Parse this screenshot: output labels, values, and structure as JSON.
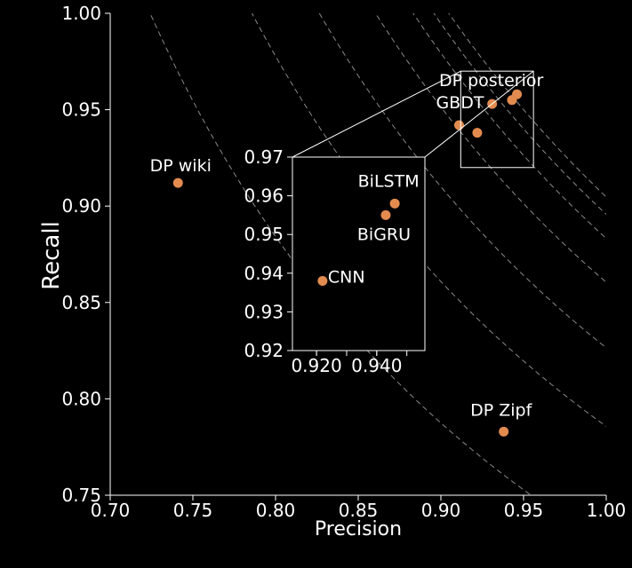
{
  "chart_data": {
    "type": "scatter",
    "title": "",
    "xlabel": "Precision",
    "ylabel": "Recall",
    "xlim": [
      0.7,
      1.0
    ],
    "ylim": [
      0.75,
      1.0
    ],
    "xticks": [
      "0.70",
      "0.75",
      "0.80",
      "0.85",
      "0.90",
      "0.95",
      "1.00"
    ],
    "yticks": [
      "0.75",
      "0.80",
      "0.85",
      "0.90",
      "0.95",
      "1.00"
    ],
    "marker_color": "#e38b4f",
    "iso_f1_curves": [
      0.84,
      0.88,
      0.905,
      0.925,
      0.938,
      0.945,
      0.95
    ],
    "points": [
      {
        "label": "DP wiki",
        "x": 0.741,
        "y": 0.912
      },
      {
        "label": "DP posterior",
        "x": 0.931,
        "y": 0.953
      },
      {
        "label": "GBDT",
        "x": 0.911,
        "y": 0.942
      },
      {
        "label": "DP Zipf",
        "x": 0.938,
        "y": 0.783
      },
      {
        "label": "",
        "x": 0.922,
        "y": 0.938
      },
      {
        "label": "",
        "x": 0.943,
        "y": 0.955
      },
      {
        "label": "",
        "x": 0.946,
        "y": 0.958
      }
    ],
    "inset": {
      "xlim": [
        0.912,
        0.956
      ],
      "ylim": [
        0.92,
        0.97
      ],
      "xticks": [
        "0.920",
        "0.940"
      ],
      "yticks": [
        "0.92",
        "0.93",
        "0.94",
        "0.95",
        "0.96",
        "0.97"
      ],
      "points": [
        {
          "label": "CNN",
          "x": 0.922,
          "y": 0.938
        },
        {
          "label": "BiGRU",
          "x": 0.943,
          "y": 0.955
        },
        {
          "label": "BiLSTM",
          "x": 0.946,
          "y": 0.958
        }
      ]
    }
  }
}
